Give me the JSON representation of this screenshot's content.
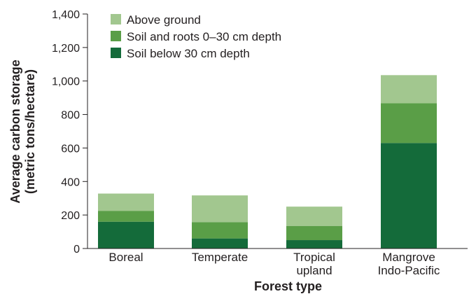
{
  "chart_data": {
    "type": "bar",
    "stacked": true,
    "categories": [
      [
        "Boreal"
      ],
      [
        "Temperate"
      ],
      [
        "Tropical",
        "upland"
      ],
      [
        "Mangrove",
        "Indo-Pacific"
      ]
    ],
    "series": [
      {
        "name": "Soil below 30 cm depth",
        "color": "#146b3a",
        "values": [
          160,
          60,
          50,
          630
        ]
      },
      {
        "name": "Soil and roots 0–30 cm depth",
        "color": "#5a9e47",
        "values": [
          65,
          97,
          85,
          237
        ]
      },
      {
        "name": "Above ground",
        "color": "#a2c78f",
        "values": [
          103,
          160,
          115,
          168
        ]
      }
    ],
    "legend_order": [
      2,
      1,
      0
    ],
    "legend_position": "top-left",
    "xlabel": "Forest type",
    "ylabel": [
      "Average carbon storage",
      "(metric tons/hectare)"
    ],
    "ylim": [
      0,
      1400
    ],
    "yticks": [
      0,
      200,
      400,
      600,
      800,
      1000,
      1200,
      1400
    ],
    "ytick_labels": [
      "0",
      "200",
      "400",
      "600",
      "800",
      "1,000",
      "1,200",
      "1,400"
    ],
    "grid": false
  }
}
